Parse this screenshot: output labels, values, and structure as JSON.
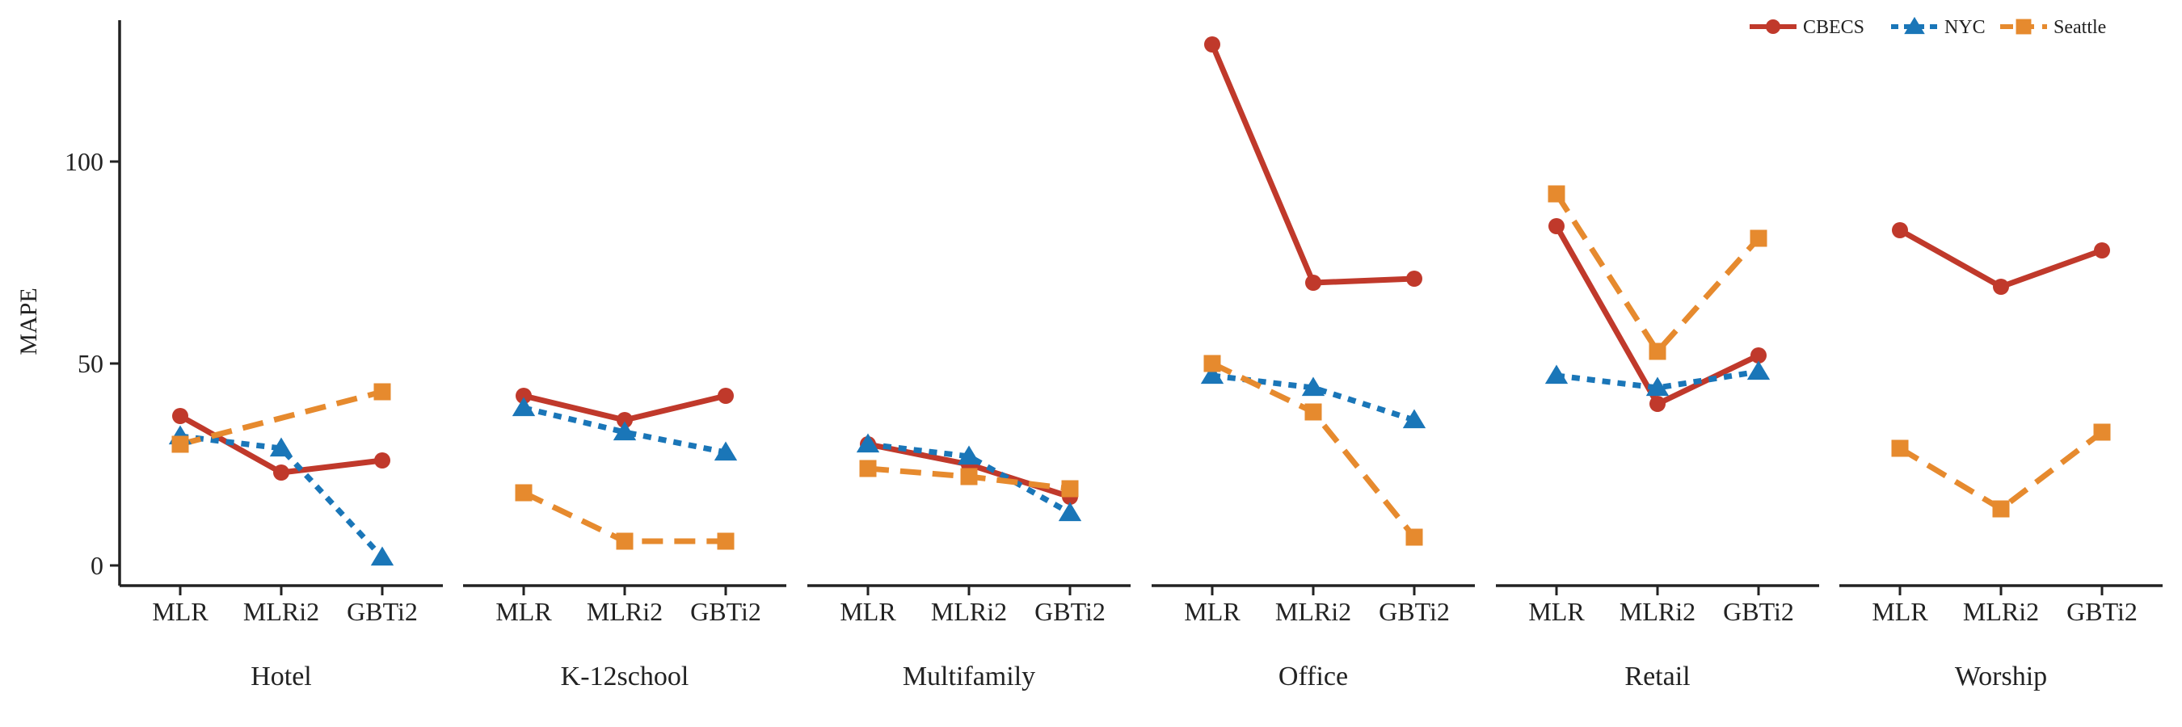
{
  "chart_data": {
    "type": "line",
    "ylabel": "MAPE",
    "ylim": [
      -5,
      135
    ],
    "yticks": [
      0,
      50,
      100
    ],
    "categories": [
      "MLR",
      "MLRi2",
      "GBTi2"
    ],
    "legend": {
      "placement": "top-right"
    },
    "series_styles": [
      {
        "name": "CBECS",
        "color": "#C0392B",
        "marker": "circle",
        "line": "solid"
      },
      {
        "name": "NYC",
        "color": "#1A76B8",
        "marker": "triangle",
        "line": "dotted"
      },
      {
        "name": "Seattle",
        "color": "#E68A2E",
        "marker": "square",
        "line": "dashed"
      }
    ],
    "facets": [
      {
        "label": "Hotel",
        "series": [
          {
            "name": "CBECS",
            "values": [
              37,
              23,
              26
            ]
          },
          {
            "name": "NYC",
            "values": [
              32,
              29,
              2
            ]
          },
          {
            "name": "Seattle",
            "values": [
              30,
              null,
              43
            ]
          }
        ]
      },
      {
        "label": "K-12school",
        "series": [
          {
            "name": "CBECS",
            "values": [
              42,
              36,
              42
            ]
          },
          {
            "name": "NYC",
            "values": [
              39,
              33,
              28
            ]
          },
          {
            "name": "Seattle",
            "values": [
              18,
              6,
              6
            ]
          }
        ]
      },
      {
        "label": "Multifamily",
        "series": [
          {
            "name": "CBECS",
            "values": [
              30,
              25,
              17
            ]
          },
          {
            "name": "NYC",
            "values": [
              30,
              27,
              13
            ]
          },
          {
            "name": "Seattle",
            "values": [
              24,
              22,
              19
            ]
          }
        ]
      },
      {
        "label": "Office",
        "series": [
          {
            "name": "CBECS",
            "values": [
              129,
              70,
              71
            ]
          },
          {
            "name": "NYC",
            "values": [
              47,
              44,
              36
            ]
          },
          {
            "name": "Seattle",
            "values": [
              50,
              38,
              7
            ]
          }
        ]
      },
      {
        "label": "Retail",
        "series": [
          {
            "name": "CBECS",
            "values": [
              84,
              40,
              52
            ]
          },
          {
            "name": "NYC",
            "values": [
              47,
              44,
              48
            ]
          },
          {
            "name": "Seattle",
            "values": [
              92,
              53,
              81
            ]
          }
        ]
      },
      {
        "label": "Worship",
        "series": [
          {
            "name": "CBECS",
            "values": [
              83,
              69,
              78
            ]
          },
          {
            "name": "NYC",
            "values": [
              null,
              null,
              null
            ]
          },
          {
            "name": "Seattle",
            "values": [
              29,
              14,
              33
            ]
          }
        ]
      }
    ]
  }
}
